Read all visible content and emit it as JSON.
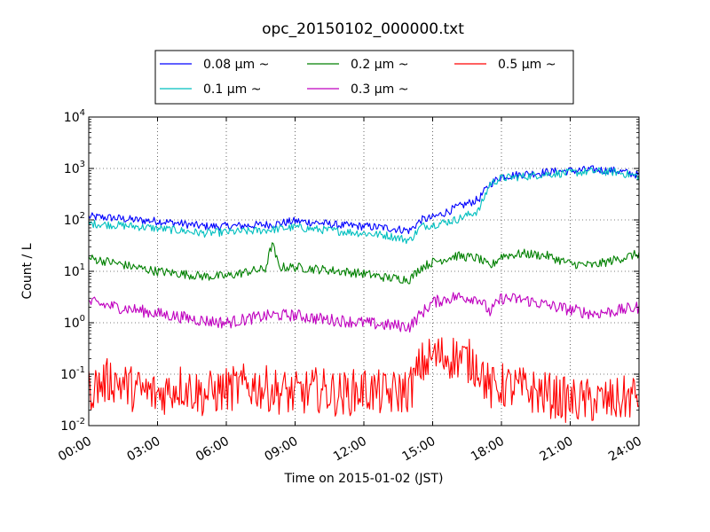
{
  "chart_data": {
    "type": "line",
    "title": "opc_20150102_000000.txt",
    "xlabel": "Time on 2015-01-02 (JST)",
    "ylabel": "Count / L",
    "x_ticks": [
      "00:00",
      "03:00",
      "06:00",
      "09:00",
      "12:00",
      "15:00",
      "18:00",
      "21:00",
      "24:00"
    ],
    "x_range_hours": [
      0,
      24
    ],
    "y_scale": "log",
    "ylim": [
      0.01,
      10000
    ],
    "y_ticks": [
      {
        "base": "10",
        "exp": "-2"
      },
      {
        "base": "10",
        "exp": "-1"
      },
      {
        "base": "10",
        "exp": "0"
      },
      {
        "base": "10",
        "exp": "1"
      },
      {
        "base": "10",
        "exp": "2"
      },
      {
        "base": "10",
        "exp": "3"
      },
      {
        "base": "10",
        "exp": "4"
      }
    ],
    "grid": true,
    "legend_placement": "top-center",
    "series": [
      {
        "name": "0.08 μm ~",
        "color": "#0000ff",
        "points": [
          [
            0,
            115
          ],
          [
            1,
            110
          ],
          [
            2,
            100
          ],
          [
            3,
            95
          ],
          [
            4,
            85
          ],
          [
            5,
            75
          ],
          [
            6,
            75
          ],
          [
            7,
            78
          ],
          [
            8,
            82
          ],
          [
            9,
            95
          ],
          [
            10,
            88
          ],
          [
            11,
            78
          ],
          [
            12,
            75
          ],
          [
            13,
            70
          ],
          [
            14,
            62
          ],
          [
            14.5,
            100
          ],
          [
            15,
            110
          ],
          [
            16,
            170
          ],
          [
            17,
            250
          ],
          [
            17.5,
            500
          ],
          [
            18,
            700
          ],
          [
            19,
            780
          ],
          [
            20,
            850
          ],
          [
            21,
            900
          ],
          [
            22,
            950
          ],
          [
            23,
            900
          ],
          [
            24,
            750
          ]
        ]
      },
      {
        "name": "0.1 μm ~",
        "color": "#00bfbf",
        "points": [
          [
            0,
            85
          ],
          [
            1,
            80
          ],
          [
            2,
            75
          ],
          [
            3,
            68
          ],
          [
            4,
            62
          ],
          [
            5,
            55
          ],
          [
            6,
            58
          ],
          [
            7,
            60
          ],
          [
            8,
            65
          ],
          [
            9,
            72
          ],
          [
            10,
            65
          ],
          [
            11,
            60
          ],
          [
            12,
            55
          ],
          [
            13,
            50
          ],
          [
            14,
            40
          ],
          [
            14.5,
            75
          ],
          [
            15,
            80
          ],
          [
            16,
            100
          ],
          [
            17,
            150
          ],
          [
            17.5,
            500
          ],
          [
            18,
            650
          ],
          [
            19,
            700
          ],
          [
            20,
            780
          ],
          [
            21,
            820
          ],
          [
            22,
            880
          ],
          [
            23,
            850
          ],
          [
            24,
            700
          ]
        ]
      },
      {
        "name": "0.2 μm ~",
        "color": "#008000",
        "points": [
          [
            0,
            18
          ],
          [
            1,
            15
          ],
          [
            2,
            12
          ],
          [
            3,
            10
          ],
          [
            4,
            9
          ],
          [
            5,
            8
          ],
          [
            6,
            8
          ],
          [
            7,
            10
          ],
          [
            7.7,
            11
          ],
          [
            8,
            35
          ],
          [
            8.3,
            12
          ],
          [
            9,
            12
          ],
          [
            10,
            11
          ],
          [
            11,
            10
          ],
          [
            12,
            9
          ],
          [
            13,
            7.5
          ],
          [
            14,
            7
          ],
          [
            14.5,
            12
          ],
          [
            15,
            15
          ],
          [
            16,
            20
          ],
          [
            17,
            18
          ],
          [
            17.5,
            12
          ],
          [
            18,
            20
          ],
          [
            19,
            22
          ],
          [
            20,
            20
          ],
          [
            21,
            14
          ],
          [
            22,
            13
          ],
          [
            23,
            17
          ],
          [
            24,
            22
          ]
        ]
      },
      {
        "name": "0.3 μm ~",
        "color": "#bf00bf",
        "points": [
          [
            0,
            2.5
          ],
          [
            1,
            2.1
          ],
          [
            2,
            1.8
          ],
          [
            3,
            1.5
          ],
          [
            4,
            1.3
          ],
          [
            5,
            1.1
          ],
          [
            6,
            1.0
          ],
          [
            7,
            1.2
          ],
          [
            8,
            1.4
          ],
          [
            9,
            1.4
          ],
          [
            10,
            1.2
          ],
          [
            11,
            1.1
          ],
          [
            12,
            1.0
          ],
          [
            13,
            0.9
          ],
          [
            14,
            0.85
          ],
          [
            14.5,
            1.5
          ],
          [
            15,
            2.5
          ],
          [
            16,
            3.2
          ],
          [
            17,
            3.0
          ],
          [
            17.5,
            1.6
          ],
          [
            18,
            3.0
          ],
          [
            19,
            2.8
          ],
          [
            20,
            2.2
          ],
          [
            21,
            1.8
          ],
          [
            22,
            1.5
          ],
          [
            23,
            1.7
          ],
          [
            24,
            2.0
          ]
        ]
      },
      {
        "name": "0.5 μm ~",
        "color": "#ff0000",
        "points": [
          [
            0,
            0.05
          ],
          [
            1,
            0.08
          ],
          [
            2,
            0.05
          ],
          [
            3,
            0.04
          ],
          [
            4,
            0.06
          ],
          [
            5,
            0.04
          ],
          [
            6,
            0.05
          ],
          [
            7,
            0.06
          ],
          [
            8,
            0.05
          ],
          [
            9,
            0.04
          ],
          [
            10,
            0.05
          ],
          [
            11,
            0.04
          ],
          [
            12,
            0.05
          ],
          [
            13,
            0.04
          ],
          [
            14,
            0.05
          ],
          [
            14.5,
            0.15
          ],
          [
            15,
            0.22
          ],
          [
            16,
            0.22
          ],
          [
            17,
            0.15
          ],
          [
            17.5,
            0.05
          ],
          [
            18,
            0.06
          ],
          [
            19,
            0.05
          ],
          [
            20,
            0.04
          ],
          [
            21,
            0.03
          ],
          [
            22,
            0.03
          ],
          [
            23,
            0.03
          ],
          [
            24,
            0.04
          ]
        ]
      }
    ]
  }
}
